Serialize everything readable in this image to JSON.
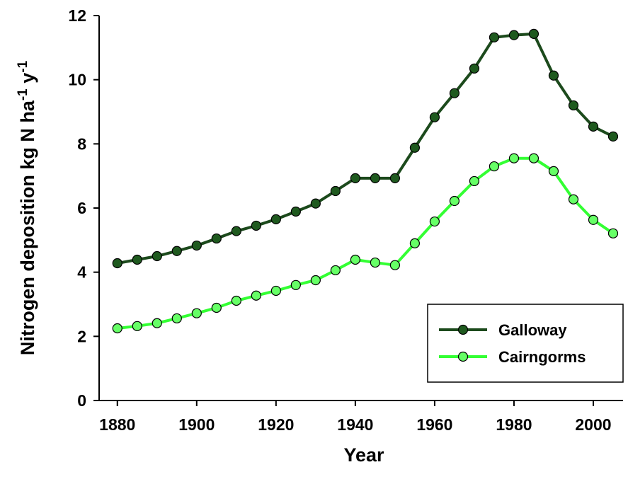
{
  "chart_data": {
    "type": "line",
    "xlabel": "Year",
    "ylabel": [
      {
        "text": "Nitrogen deposition kg N ha"
      },
      {
        "text": "-1",
        "sup": true
      },
      {
        "text": " y"
      },
      {
        "text": "-1",
        "sup": true
      }
    ],
    "x": [
      1880,
      1885,
      1890,
      1895,
      1900,
      1905,
      1910,
      1915,
      1920,
      1925,
      1930,
      1935,
      1940,
      1945,
      1950,
      1955,
      1960,
      1965,
      1970,
      1975,
      1980,
      1985,
      1990,
      1995,
      2000,
      2005
    ],
    "series": [
      {
        "name": "Galloway",
        "color": "#1c4a1c",
        "marker_color": "#1f5a1f",
        "values": [
          4.28,
          4.39,
          4.5,
          4.66,
          4.83,
          5.05,
          5.28,
          5.45,
          5.65,
          5.89,
          6.14,
          6.53,
          6.93,
          6.93,
          6.93,
          7.88,
          8.83,
          9.58,
          10.35,
          11.32,
          11.39,
          11.43,
          10.13,
          9.2,
          8.54,
          8.23
        ]
      },
      {
        "name": "Cairngorms",
        "color": "#33ff33",
        "marker_color": "#66ff66",
        "values": [
          2.25,
          2.32,
          2.41,
          2.56,
          2.72,
          2.89,
          3.11,
          3.27,
          3.42,
          3.6,
          3.75,
          4.06,
          4.39,
          4.3,
          4.22,
          4.9,
          5.58,
          6.22,
          6.84,
          7.3,
          7.55,
          7.55,
          7.15,
          6.27,
          5.63,
          5.21
        ]
      }
    ],
    "xlim": [
      1875.4,
      2007.5
    ],
    "xticks": [
      1880,
      1900,
      1920,
      1940,
      1960,
      1980,
      2000
    ],
    "ylim": [
      0,
      12
    ],
    "yticks": [
      0,
      2,
      4,
      6,
      8,
      10,
      12
    ],
    "grid": false,
    "legend": "lower right"
  }
}
